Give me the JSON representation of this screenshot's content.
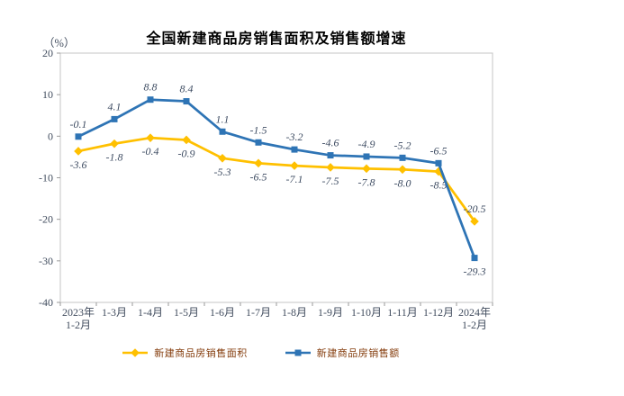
{
  "chart_data": {
    "type": "line",
    "title": "全国新建商品房销售面积及销售额增速",
    "unit_label": "（%）",
    "categories": [
      [
        "2023年",
        "1-2月"
      ],
      [
        "1-3月"
      ],
      [
        "1-4月"
      ],
      [
        "1-5月"
      ],
      [
        "1-6月"
      ],
      [
        "1-7月"
      ],
      [
        "1-8月"
      ],
      [
        "1-9月"
      ],
      [
        "1-10月"
      ],
      [
        "1-11月"
      ],
      [
        "1-12月"
      ],
      [
        "2024年",
        "1-2月"
      ]
    ],
    "ylim": [
      -40,
      20
    ],
    "yticks": [
      20,
      10,
      0,
      -10,
      -20,
      -30,
      -40
    ],
    "grid": false,
    "legend_position": "bottom",
    "series": [
      {
        "name": "新建商品房销售面积",
        "color": "#FFC000",
        "marker": "diamond",
        "values": [
          -3.6,
          -1.8,
          -0.4,
          -0.9,
          -5.3,
          -6.5,
          -7.1,
          -7.5,
          -7.8,
          -8.0,
          -8.5,
          -20.5
        ],
        "label_sides": [
          "below",
          "below",
          "below",
          "below",
          "below",
          "below",
          "below",
          "below",
          "below",
          "below",
          "below",
          "above"
        ]
      },
      {
        "name": "新建商品房销售额",
        "color": "#2E74B5",
        "marker": "square",
        "values": [
          -0.1,
          4.1,
          8.8,
          8.4,
          1.1,
          -1.5,
          -3.2,
          -4.6,
          -4.9,
          -5.2,
          -6.5,
          -29.3
        ],
        "label_sides": [
          "above",
          "above",
          "above",
          "above",
          "above",
          "above",
          "above",
          "above",
          "above",
          "above",
          "above",
          "below"
        ]
      }
    ],
    "colors": {
      "background": "#FFFFFF",
      "title_text": "#000000",
      "plot_border": "#C4C4C4",
      "tick_mark": "#9A9A9A",
      "tick_text": "#414C5E",
      "data_label_text": "#3F4D63",
      "legend_text": "#843C0C",
      "series_area": "#FFC000",
      "series_amount": "#2E74B5"
    }
  }
}
